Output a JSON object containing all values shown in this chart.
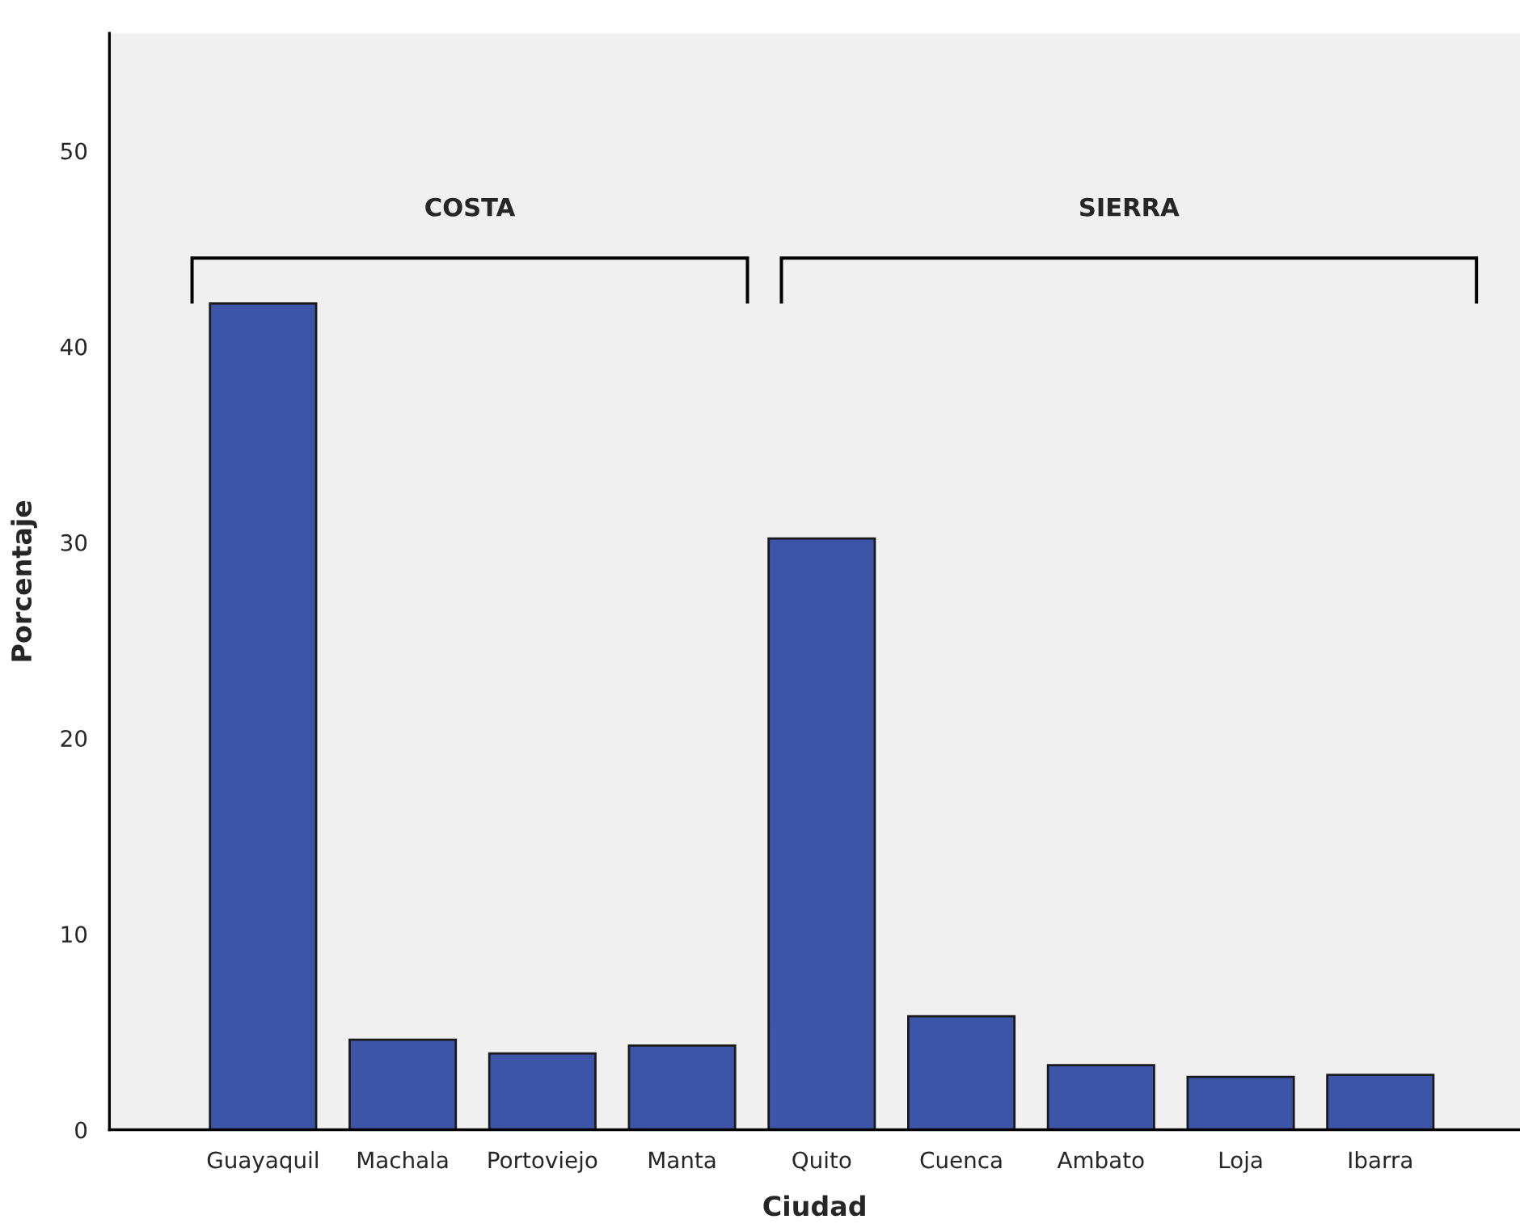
{
  "chart_data": {
    "type": "bar",
    "xlabel": "Ciudad",
    "ylabel": "Porcentaje",
    "categories": [
      "Guayaquil",
      "Machala",
      "Portoviejo",
      "Manta",
      "Quito",
      "Cuenca",
      "Ambato",
      "Loja",
      "Ibarra"
    ],
    "values": [
      42.2,
      4.6,
      3.9,
      4.3,
      30.2,
      5.8,
      3.3,
      2.7,
      2.8
    ],
    "color": "#3c55a8",
    "ylim": [
      0,
      56
    ],
    "yticks": [
      0,
      10,
      20,
      30,
      40,
      50
    ],
    "annotations": [
      "COSTA",
      "SIERRA"
    ],
    "grid": false,
    "legend": false
  }
}
